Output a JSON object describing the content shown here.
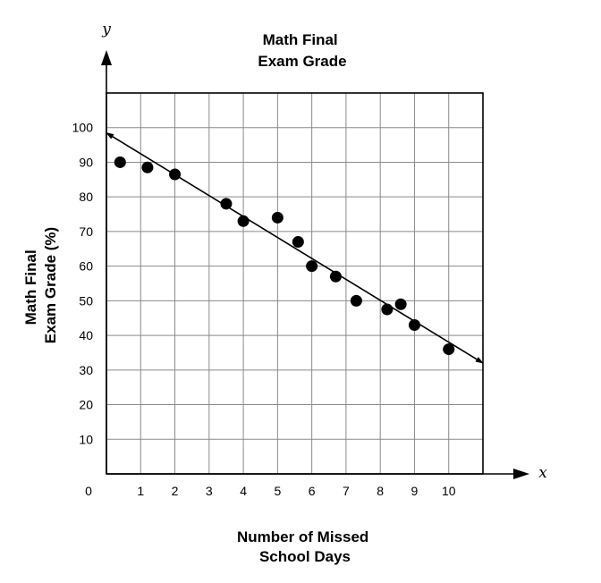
{
  "chart_data": {
    "type": "scatter",
    "title_lines": [
      "Math Final",
      "Exam Grade"
    ],
    "xlabel_lines": [
      "Number of Missed",
      "School Days"
    ],
    "ylabel_lines": [
      "Math Final",
      "Exam Grade (%)"
    ],
    "x_var": "x",
    "y_var": "y",
    "origin_label": "0",
    "xlim": [
      0,
      11
    ],
    "ylim": [
      0,
      110
    ],
    "x_ticks": [
      1,
      2,
      3,
      4,
      5,
      6,
      7,
      8,
      9,
      10
    ],
    "x_tick_labels": [
      "1",
      "2",
      "3",
      "4",
      "5",
      "6",
      "7",
      "8",
      "9",
      "10"
    ],
    "y_ticks": [
      10,
      20,
      30,
      40,
      50,
      60,
      70,
      80,
      90,
      100
    ],
    "y_tick_labels": [
      "10",
      "20",
      "30",
      "40",
      "50",
      "60",
      "70",
      "80",
      "90",
      "100"
    ],
    "grid": true,
    "points": [
      {
        "x": 0.4,
        "y": 90
      },
      {
        "x": 1.2,
        "y": 88.5
      },
      {
        "x": 2.0,
        "y": 86.5
      },
      {
        "x": 3.5,
        "y": 78
      },
      {
        "x": 4.0,
        "y": 73
      },
      {
        "x": 5.0,
        "y": 74
      },
      {
        "x": 5.6,
        "y": 67
      },
      {
        "x": 6.0,
        "y": 60
      },
      {
        "x": 6.7,
        "y": 57
      },
      {
        "x": 7.3,
        "y": 50
      },
      {
        "x": 8.2,
        "y": 47.5
      },
      {
        "x": 8.6,
        "y": 49
      },
      {
        "x": 9.0,
        "y": 43
      },
      {
        "x": 10.0,
        "y": 36
      }
    ],
    "trend_line": {
      "start": {
        "x": 0,
        "y": 98.5
      },
      "end": {
        "x": 11,
        "y": 32
      },
      "arrows": "both"
    }
  }
}
